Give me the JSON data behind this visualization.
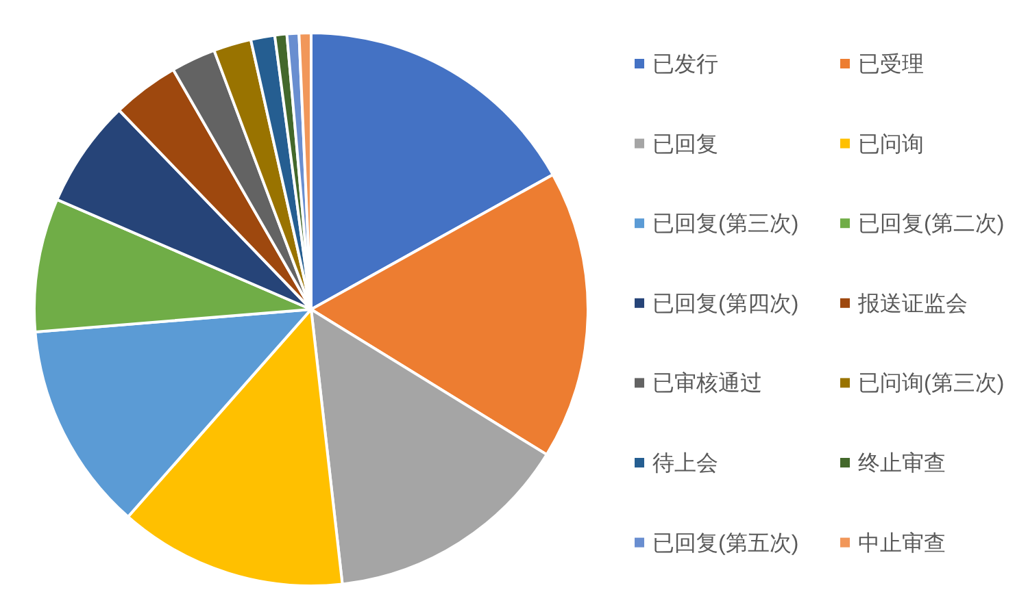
{
  "chart_data": {
    "type": "pie",
    "categories": [
      "已发行",
      "已受理",
      "已回复",
      "已问询",
      "已回复(第三次)",
      "已回复(第二次)",
      "已回复(第四次)",
      "报送证监会",
      "已审核通过",
      "已问询(第三次)",
      "待上会",
      "终止审查",
      "已回复(第五次)",
      "中止审查"
    ],
    "values": [
      16.9,
      16.9,
      14.4,
      13.3,
      12.2,
      7.8,
      6.3,
      3.9,
      2.6,
      2.2,
      1.4,
      0.7,
      0.7,
      0.7
    ],
    "colors": [
      "#4472c4",
      "#ed7d31",
      "#a5a5a5",
      "#ffc000",
      "#5b9bd5",
      "#70ad47",
      "#264478",
      "#9e480e",
      "#636363",
      "#997300",
      "#255e91",
      "#43682b",
      "#698ed0",
      "#f1975a"
    ],
    "legend": "right"
  }
}
